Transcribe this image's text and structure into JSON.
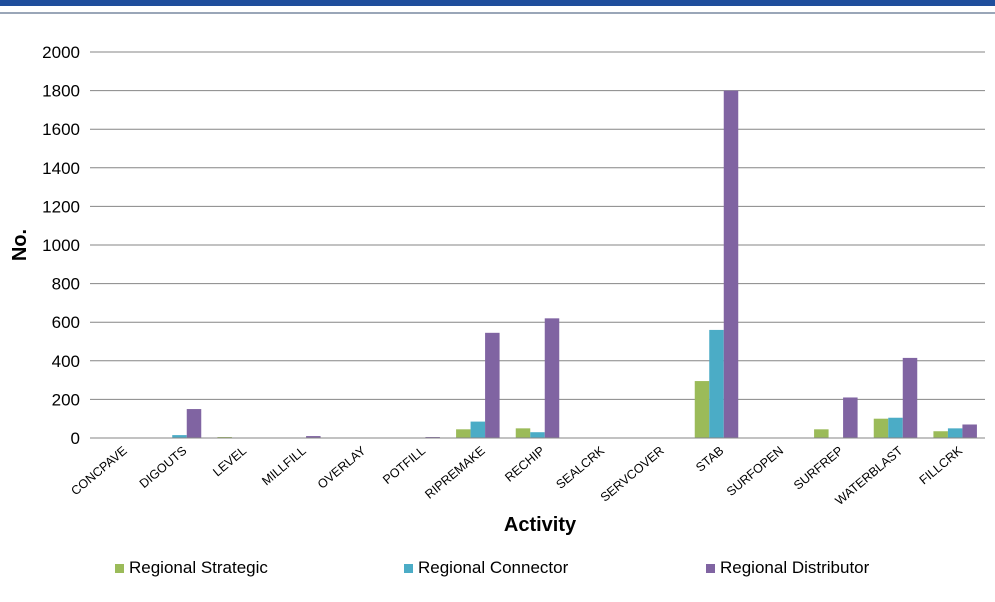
{
  "chart_data": {
    "type": "bar",
    "categories": [
      "CONCPAVE",
      "DIGOUTS",
      "LEVEL",
      "MILLFILL",
      "OVERLAY",
      "POTFILL",
      "RIPREMAKE",
      "RECHIP",
      "SEALCRK",
      "SERVCOVER",
      "STAB",
      "SURFOPEN",
      "SURFREP",
      "WATERBLAST",
      "FILLCRK"
    ],
    "series": [
      {
        "name": "Regional Strategic",
        "color": "#9bbb59",
        "values": [
          0,
          0,
          5,
          0,
          0,
          0,
          45,
          50,
          0,
          0,
          295,
          0,
          45,
          100,
          35
        ]
      },
      {
        "name": "Regional Connector",
        "color": "#4bacc6",
        "values": [
          0,
          15,
          0,
          0,
          0,
          0,
          85,
          30,
          0,
          0,
          560,
          0,
          0,
          105,
          50
        ]
      },
      {
        "name": "Regional Distributor",
        "color": "#8064a2",
        "values": [
          0,
          150,
          0,
          10,
          0,
          5,
          545,
          620,
          0,
          0,
          1800,
          0,
          210,
          415,
          70
        ]
      }
    ],
    "xlabel": "Activity",
    "ylabel": "No.",
    "ylim": [
      0,
      2000
    ],
    "yticks": [
      0,
      200,
      400,
      600,
      800,
      1000,
      1200,
      1400,
      1600,
      1800,
      2000
    ],
    "grid": true,
    "legend": "bottom"
  }
}
